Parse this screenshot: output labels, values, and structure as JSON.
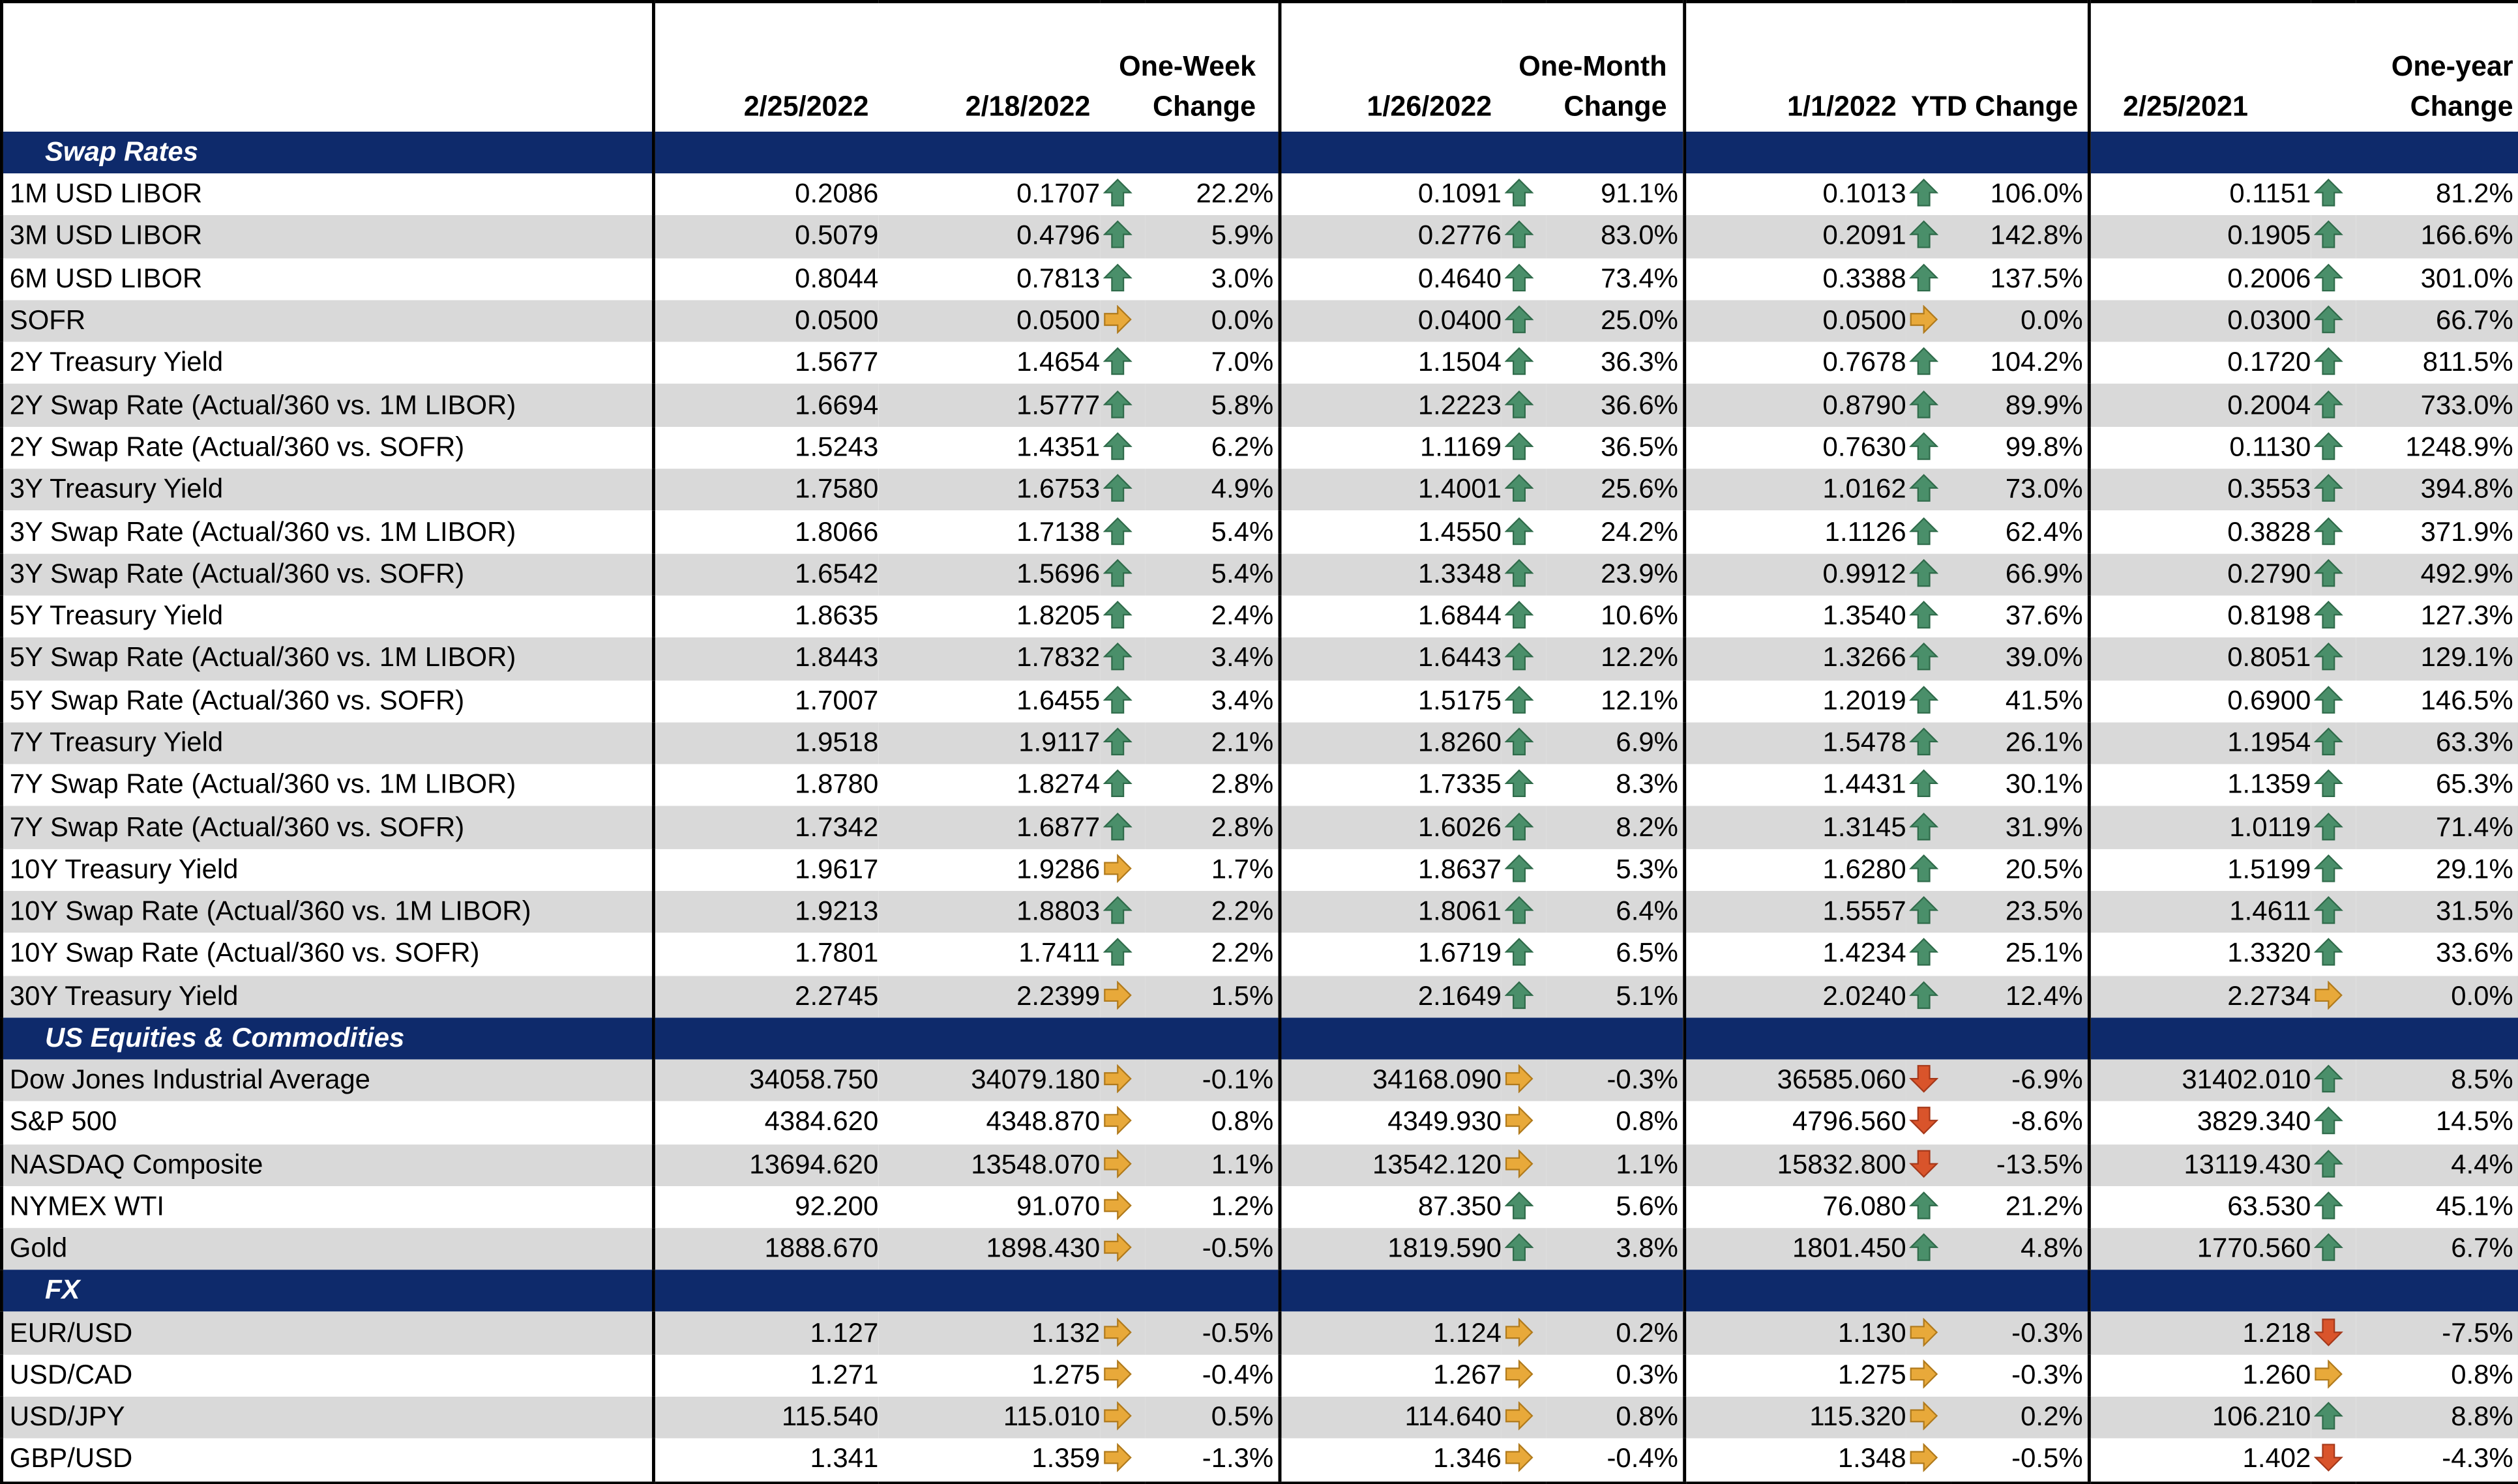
{
  "headers": {
    "c1": "2/25/2022",
    "c2": "2/18/2022",
    "c3_l1": "One-Week",
    "c3_l2": "Change",
    "c4": "1/26/2022",
    "c5_l1": "One-Month",
    "c5_l2": "Change",
    "c6": "1/1/2022",
    "c7": "YTD Change",
    "c8": "2/25/2021",
    "c9_l1": "One-year",
    "c9_l2": "Change"
  },
  "colors": {
    "section_bg": "#0e2a6b",
    "up": "#4a8f6a",
    "flat": "#e8a93a",
    "down": "#d9542b",
    "stripe": "#d9d9d9"
  },
  "sections": [
    {
      "title": "Swap Rates",
      "rows": [
        {
          "label": "1M USD LIBOR",
          "v1": "0.2086",
          "v2": "0.1707",
          "a2": "up",
          "p2": "22.2%",
          "v3": "0.1091",
          "a3": "up",
          "p3": "91.1%",
          "v4": "0.1013",
          "a4": "up",
          "p4": "106.0%",
          "v5": "0.1151",
          "a5": "up",
          "p5": "81.2%"
        },
        {
          "label": "3M USD LIBOR",
          "v1": "0.5079",
          "v2": "0.4796",
          "a2": "up",
          "p2": "5.9%",
          "v3": "0.2776",
          "a3": "up",
          "p3": "83.0%",
          "v4": "0.2091",
          "a4": "up",
          "p4": "142.8%",
          "v5": "0.1905",
          "a5": "up",
          "p5": "166.6%"
        },
        {
          "label": "6M USD LIBOR",
          "v1": "0.8044",
          "v2": "0.7813",
          "a2": "up",
          "p2": "3.0%",
          "v3": "0.4640",
          "a3": "up",
          "p3": "73.4%",
          "v4": "0.3388",
          "a4": "up",
          "p4": "137.5%",
          "v5": "0.2006",
          "a5": "up",
          "p5": "301.0%"
        },
        {
          "label": "SOFR",
          "v1": "0.0500",
          "v2": "0.0500",
          "a2": "flat",
          "p2": "0.0%",
          "v3": "0.0400",
          "a3": "up",
          "p3": "25.0%",
          "v4": "0.0500",
          "a4": "flat",
          "p4": "0.0%",
          "v5": "0.0300",
          "a5": "up",
          "p5": "66.7%"
        },
        {
          "label": "2Y Treasury Yield",
          "v1": "1.5677",
          "v2": "1.4654",
          "a2": "up",
          "p2": "7.0%",
          "v3": "1.1504",
          "a3": "up",
          "p3": "36.3%",
          "v4": "0.7678",
          "a4": "up",
          "p4": "104.2%",
          "v5": "0.1720",
          "a5": "up",
          "p5": "811.5%"
        },
        {
          "label": "2Y Swap Rate (Actual/360 vs. 1M LIBOR)",
          "v1": "1.6694",
          "v2": "1.5777",
          "a2": "up",
          "p2": "5.8%",
          "v3": "1.2223",
          "a3": "up",
          "p3": "36.6%",
          "v4": "0.8790",
          "a4": "up",
          "p4": "89.9%",
          "v5": "0.2004",
          "a5": "up",
          "p5": "733.0%"
        },
        {
          "label": "2Y Swap Rate (Actual/360 vs. SOFR)",
          "v1": "1.5243",
          "v2": "1.4351",
          "a2": "up",
          "p2": "6.2%",
          "v3": "1.1169",
          "a3": "up",
          "p3": "36.5%",
          "v4": "0.7630",
          "a4": "up",
          "p4": "99.8%",
          "v5": "0.1130",
          "a5": "up",
          "p5": "1248.9%"
        },
        {
          "label": "3Y Treasury Yield",
          "v1": "1.7580",
          "v2": "1.6753",
          "a2": "up",
          "p2": "4.9%",
          "v3": "1.4001",
          "a3": "up",
          "p3": "25.6%",
          "v4": "1.0162",
          "a4": "up",
          "p4": "73.0%",
          "v5": "0.3553",
          "a5": "up",
          "p5": "394.8%"
        },
        {
          "label": "3Y Swap Rate (Actual/360 vs. 1M LIBOR)",
          "v1": "1.8066",
          "v2": "1.7138",
          "a2": "up",
          "p2": "5.4%",
          "v3": "1.4550",
          "a3": "up",
          "p3": "24.2%",
          "v4": "1.1126",
          "a4": "up",
          "p4": "62.4%",
          "v5": "0.3828",
          "a5": "up",
          "p5": "371.9%"
        },
        {
          "label": "3Y Swap Rate (Actual/360 vs. SOFR)",
          "v1": "1.6542",
          "v2": "1.5696",
          "a2": "up",
          "p2": "5.4%",
          "v3": "1.3348",
          "a3": "up",
          "p3": "23.9%",
          "v4": "0.9912",
          "a4": "up",
          "p4": "66.9%",
          "v5": "0.2790",
          "a5": "up",
          "p5": "492.9%"
        },
        {
          "label": "5Y Treasury Yield",
          "v1": "1.8635",
          "v2": "1.8205",
          "a2": "up",
          "p2": "2.4%",
          "v3": "1.6844",
          "a3": "up",
          "p3": "10.6%",
          "v4": "1.3540",
          "a4": "up",
          "p4": "37.6%",
          "v5": "0.8198",
          "a5": "up",
          "p5": "127.3%"
        },
        {
          "label": "5Y Swap Rate (Actual/360 vs. 1M LIBOR)",
          "v1": "1.8443",
          "v2": "1.7832",
          "a2": "up",
          "p2": "3.4%",
          "v3": "1.6443",
          "a3": "up",
          "p3": "12.2%",
          "v4": "1.3266",
          "a4": "up",
          "p4": "39.0%",
          "v5": "0.8051",
          "a5": "up",
          "p5": "129.1%"
        },
        {
          "label": "5Y Swap Rate (Actual/360 vs. SOFR)",
          "v1": "1.7007",
          "v2": "1.6455",
          "a2": "up",
          "p2": "3.4%",
          "v3": "1.5175",
          "a3": "up",
          "p3": "12.1%",
          "v4": "1.2019",
          "a4": "up",
          "p4": "41.5%",
          "v5": "0.6900",
          "a5": "up",
          "p5": "146.5%"
        },
        {
          "label": "7Y Treasury Yield",
          "v1": "1.9518",
          "v2": "1.9117",
          "a2": "up",
          "p2": "2.1%",
          "v3": "1.8260",
          "a3": "up",
          "p3": "6.9%",
          "v4": "1.5478",
          "a4": "up",
          "p4": "26.1%",
          "v5": "1.1954",
          "a5": "up",
          "p5": "63.3%"
        },
        {
          "label": "7Y Swap Rate (Actual/360 vs. 1M LIBOR)",
          "v1": "1.8780",
          "v2": "1.8274",
          "a2": "up",
          "p2": "2.8%",
          "v3": "1.7335",
          "a3": "up",
          "p3": "8.3%",
          "v4": "1.4431",
          "a4": "up",
          "p4": "30.1%",
          "v5": "1.1359",
          "a5": "up",
          "p5": "65.3%"
        },
        {
          "label": "7Y Swap Rate (Actual/360 vs. SOFR)",
          "v1": "1.7342",
          "v2": "1.6877",
          "a2": "up",
          "p2": "2.8%",
          "v3": "1.6026",
          "a3": "up",
          "p3": "8.2%",
          "v4": "1.3145",
          "a4": "up",
          "p4": "31.9%",
          "v5": "1.0119",
          "a5": "up",
          "p5": "71.4%"
        },
        {
          "label": "10Y Treasury Yield",
          "v1": "1.9617",
          "v2": "1.9286",
          "a2": "flat",
          "p2": "1.7%",
          "v3": "1.8637",
          "a3": "up",
          "p3": "5.3%",
          "v4": "1.6280",
          "a4": "up",
          "p4": "20.5%",
          "v5": "1.5199",
          "a5": "up",
          "p5": "29.1%"
        },
        {
          "label": "10Y Swap Rate (Actual/360 vs. 1M LIBOR)",
          "v1": "1.9213",
          "v2": "1.8803",
          "a2": "up",
          "p2": "2.2%",
          "v3": "1.8061",
          "a3": "up",
          "p3": "6.4%",
          "v4": "1.5557",
          "a4": "up",
          "p4": "23.5%",
          "v5": "1.4611",
          "a5": "up",
          "p5": "31.5%"
        },
        {
          "label": "10Y Swap Rate (Actual/360 vs. SOFR)",
          "v1": "1.7801",
          "v2": "1.7411",
          "a2": "up",
          "p2": "2.2%",
          "v3": "1.6719",
          "a3": "up",
          "p3": "6.5%",
          "v4": "1.4234",
          "a4": "up",
          "p4": "25.1%",
          "v5": "1.3320",
          "a5": "up",
          "p5": "33.6%"
        },
        {
          "label": "30Y Treasury Yield",
          "v1": "2.2745",
          "v2": "2.2399",
          "a2": "flat",
          "p2": "1.5%",
          "v3": "2.1649",
          "a3": "up",
          "p3": "5.1%",
          "v4": "2.0240",
          "a4": "up",
          "p4": "12.4%",
          "v5": "2.2734",
          "a5": "flat",
          "p5": "0.0%"
        }
      ]
    },
    {
      "title": "US Equities & Commodities",
      "rows": [
        {
          "label": "Dow Jones Industrial Average",
          "v1": "34058.750",
          "v2": "34079.180",
          "a2": "flat",
          "p2": "-0.1%",
          "v3": "34168.090",
          "a3": "flat",
          "p3": "-0.3%",
          "v4": "36585.060",
          "a4": "down",
          "p4": "-6.9%",
          "v5": "31402.010",
          "a5": "up",
          "p5": "8.5%"
        },
        {
          "label": "S&P 500",
          "v1": "4384.620",
          "v2": "4348.870",
          "a2": "flat",
          "p2": "0.8%",
          "v3": "4349.930",
          "a3": "flat",
          "p3": "0.8%",
          "v4": "4796.560",
          "a4": "down",
          "p4": "-8.6%",
          "v5": "3829.340",
          "a5": "up",
          "p5": "14.5%"
        },
        {
          "label": "NASDAQ Composite",
          "v1": "13694.620",
          "v2": "13548.070",
          "a2": "flat",
          "p2": "1.1%",
          "v3": "13542.120",
          "a3": "flat",
          "p3": "1.1%",
          "v4": "15832.800",
          "a4": "down",
          "p4": "-13.5%",
          "v5": "13119.430",
          "a5": "up",
          "p5": "4.4%"
        },
        {
          "label": "NYMEX WTI",
          "v1": "92.200",
          "v2": "91.070",
          "a2": "flat",
          "p2": "1.2%",
          "v3": "87.350",
          "a3": "up",
          "p3": "5.6%",
          "v4": "76.080",
          "a4": "up",
          "p4": "21.2%",
          "v5": "63.530",
          "a5": "up",
          "p5": "45.1%"
        },
        {
          "label": "Gold",
          "v1": "1888.670",
          "v2": "1898.430",
          "a2": "flat",
          "p2": "-0.5%",
          "v3": "1819.590",
          "a3": "up",
          "p3": "3.8%",
          "v4": "1801.450",
          "a4": "up",
          "p4": "4.8%",
          "v5": "1770.560",
          "a5": "up",
          "p5": "6.7%"
        }
      ]
    },
    {
      "title": "FX",
      "rows": [
        {
          "label": "EUR/USD",
          "v1": "1.127",
          "v2": "1.132",
          "a2": "flat",
          "p2": "-0.5%",
          "v3": "1.124",
          "a3": "flat",
          "p3": "0.2%",
          "v4": "1.130",
          "a4": "flat",
          "p4": "-0.3%",
          "v5": "1.218",
          "a5": "down",
          "p5": "-7.5%"
        },
        {
          "label": "USD/CAD",
          "v1": "1.271",
          "v2": "1.275",
          "a2": "flat",
          "p2": "-0.4%",
          "v3": "1.267",
          "a3": "flat",
          "p3": "0.3%",
          "v4": "1.275",
          "a4": "flat",
          "p4": "-0.3%",
          "v5": "1.260",
          "a5": "flat",
          "p5": "0.8%"
        },
        {
          "label": "USD/JPY",
          "v1": "115.540",
          "v2": "115.010",
          "a2": "flat",
          "p2": "0.5%",
          "v3": "114.640",
          "a3": "flat",
          "p3": "0.8%",
          "v4": "115.320",
          "a4": "flat",
          "p4": "0.2%",
          "v5": "106.210",
          "a5": "up",
          "p5": "8.8%"
        },
        {
          "label": "GBP/USD",
          "v1": "1.341",
          "v2": "1.359",
          "a2": "flat",
          "p2": "-1.3%",
          "v3": "1.346",
          "a3": "flat",
          "p3": "-0.4%",
          "v4": "1.348",
          "a4": "flat",
          "p4": "-0.5%",
          "v5": "1.402",
          "a5": "down",
          "p5": "-4.3%"
        }
      ]
    }
  ]
}
